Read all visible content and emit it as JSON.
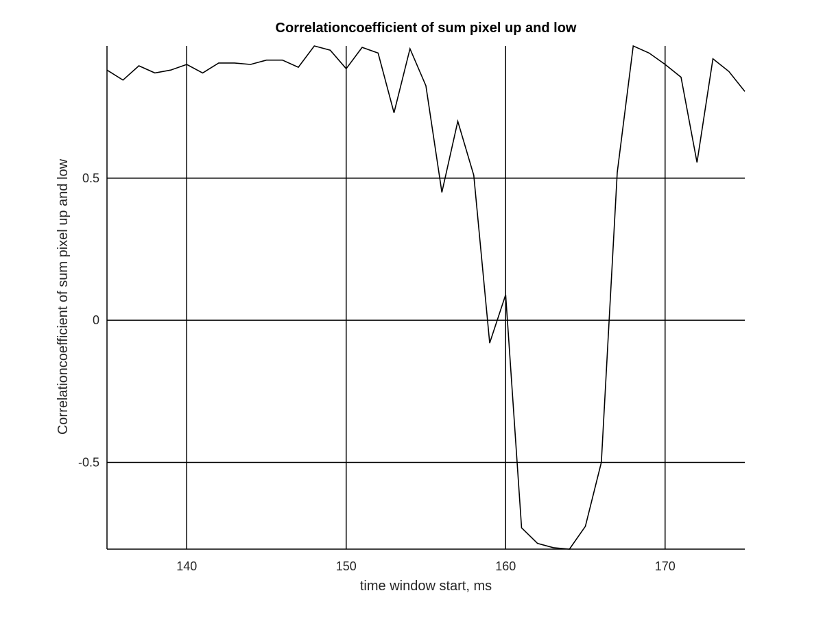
{
  "chart_data": {
    "type": "line",
    "title": "Correlationcoefficient of sum pixel up and low",
    "xlabel": "time window start, ms",
    "ylabel": "Correlationcoefficient of sum pixel up and low",
    "xlim": [
      135,
      175
    ],
    "ylim": [
      -0.805,
      0.965
    ],
    "xticks": [
      140,
      150,
      160,
      170
    ],
    "xtick_labels": [
      "140",
      "150",
      "160",
      "170"
    ],
    "yticks": [
      -0.5,
      0,
      0.5
    ],
    "ytick_labels": [
      "-0.5",
      "0",
      "0.5"
    ],
    "grid": true,
    "series": [
      {
        "x": [
          135,
          136,
          137,
          138,
          139,
          140,
          141,
          142,
          143,
          144,
          145,
          146,
          147,
          148,
          149,
          150,
          151,
          152,
          153,
          154,
          155,
          156,
          157,
          158,
          159,
          160,
          161,
          162,
          163,
          164,
          165,
          166,
          167,
          168,
          169,
          170,
          171,
          172,
          173,
          174,
          175
        ],
        "y": [
          0.88,
          0.845,
          0.895,
          0.87,
          0.88,
          0.9,
          0.87,
          0.905,
          0.905,
          0.9,
          0.915,
          0.915,
          0.89,
          0.965,
          0.95,
          0.885,
          0.96,
          0.94,
          0.73,
          0.955,
          0.825,
          0.45,
          0.7,
          0.51,
          -0.08,
          0.09,
          -0.73,
          -0.785,
          -0.8,
          -0.805,
          -0.725,
          -0.5,
          0.52,
          0.965,
          0.94,
          0.9,
          0.855,
          0.555,
          0.92,
          0.875,
          0.805
        ]
      }
    ]
  }
}
